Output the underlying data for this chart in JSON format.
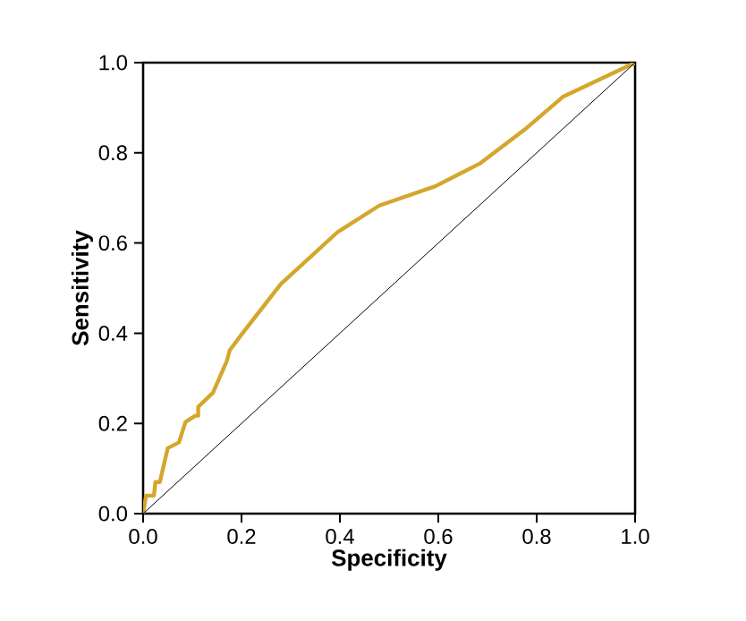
{
  "chart_data": {
    "type": "line",
    "xlabel": "Specificity",
    "ylabel": "Sensitivity",
    "series": [
      {
        "color": "#d4a72c",
        "x": [
          0,
          0.006,
          0.022,
          0.025,
          0.034,
          0.05,
          0.073,
          0.086,
          0.106,
          0.112,
          0.112,
          0.142,
          0.17,
          0.176,
          0.2,
          0.28,
          0.395,
          0.48,
          0.594,
          0.684,
          0.775,
          0.853,
          1
        ],
        "values": [
          0,
          0.04,
          0.04,
          0.07,
          0.07,
          0.145,
          0.158,
          0.203,
          0.217,
          0.217,
          0.237,
          0.268,
          0.338,
          0.362,
          0.397,
          0.509,
          0.624,
          0.683,
          0.726,
          0.776,
          0.851,
          0.924,
          1
        ]
      },
      {
        "color": "#000000",
        "x": [
          0,
          1
        ],
        "values": [
          0,
          1
        ]
      }
    ],
    "xlim": [
      0,
      1
    ],
    "ylim": [
      0,
      1
    ],
    "xticks": [
      {
        "value": 0,
        "label": "0.0"
      },
      {
        "value": 0.2,
        "label": "0.2"
      },
      {
        "value": 0.4,
        "label": "0.4"
      },
      {
        "value": 0.6,
        "label": "0.6"
      },
      {
        "value": 0.8,
        "label": "0.8"
      },
      {
        "value": 1,
        "label": "1.0"
      }
    ],
    "yticks": [
      {
        "value": 0,
        "label": "0.0"
      },
      {
        "value": 0.2,
        "label": "0.2"
      },
      {
        "value": 0.4,
        "label": "0.4"
      },
      {
        "value": 0.6,
        "label": "0.6"
      },
      {
        "value": 0.8,
        "label": "0.8"
      },
      {
        "value": 1,
        "label": "1.0"
      }
    ],
    "marker": "none"
  }
}
